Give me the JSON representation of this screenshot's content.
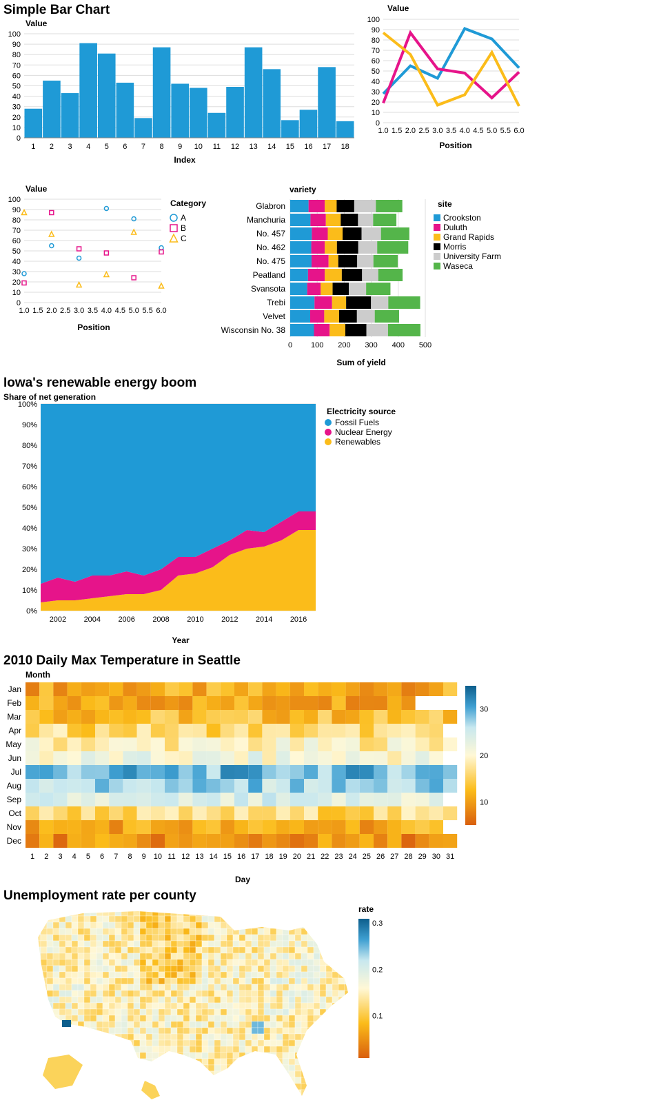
{
  "charts": [
    {
      "id": "bar",
      "title": "Simple Bar Chart",
      "ylabel": "Value",
      "xlabel": "Index",
      "type": "bar",
      "categories": [
        "1",
        "2",
        "3",
        "4",
        "5",
        "6",
        "7",
        "8",
        "9",
        "10",
        "11",
        "12",
        "13",
        "14",
        "15",
        "16",
        "17",
        "18"
      ],
      "values": [
        28,
        55,
        43,
        91,
        81,
        53,
        19,
        87,
        52,
        48,
        24,
        49,
        87,
        66,
        17,
        27,
        68,
        16
      ],
      "ylim": [
        0,
        100
      ],
      "yticks": [
        0,
        10,
        20,
        30,
        40,
        50,
        60,
        70,
        80,
        90,
        100
      ],
      "color": "#1f9ad6"
    },
    {
      "id": "lines",
      "type": "line",
      "ylabel": "Value",
      "xlabel": "Position",
      "x": [
        1,
        2,
        3,
        4,
        5,
        6
      ],
      "xticks": [
        "1.0",
        "1.5",
        "2.0",
        "2.5",
        "3.0",
        "3.5",
        "4.0",
        "4.5",
        "5.0",
        "5.5",
        "6.0"
      ],
      "yticks": [
        0,
        10,
        20,
        30,
        40,
        50,
        60,
        70,
        80,
        90,
        100
      ],
      "ylim": [
        0,
        100
      ],
      "series": [
        {
          "values": [
            28,
            55,
            43,
            91,
            81,
            53
          ],
          "color": "#1f9ad6"
        },
        {
          "values": [
            19,
            87,
            52,
            48,
            24,
            49
          ],
          "color": "#e6148a"
        },
        {
          "values": [
            87,
            66,
            17,
            27,
            68,
            16
          ],
          "color": "#fbbc1a"
        }
      ]
    },
    {
      "id": "scatter",
      "type": "scatter",
      "ylabel": "Value",
      "xlabel": "Position",
      "x": [
        1,
        2,
        3,
        4,
        5,
        6
      ],
      "xticks": [
        "1.0",
        "1.5",
        "2.0",
        "2.5",
        "3.0",
        "3.5",
        "4.0",
        "4.5",
        "5.0",
        "5.5",
        "6.0"
      ],
      "yticks": [
        0,
        10,
        20,
        30,
        40,
        50,
        60,
        70,
        80,
        90,
        100
      ],
      "ylim": [
        0,
        100
      ],
      "legend_title": "Category",
      "series": [
        {
          "name": "A",
          "values": [
            28,
            55,
            43,
            91,
            81,
            53
          ],
          "color": "#1f9ad6",
          "shape": "circle"
        },
        {
          "name": "B",
          "values": [
            19,
            87,
            52,
            48,
            24,
            49
          ],
          "color": "#e6148a",
          "shape": "square"
        },
        {
          "name": "C",
          "values": [
            87,
            66,
            17,
            27,
            68,
            16
          ],
          "color": "#fbbc1a",
          "shape": "triangle"
        }
      ]
    },
    {
      "id": "barley",
      "type": "bar",
      "orientation": "horizontal-stacked",
      "ylabel": "variety",
      "xlabel": "Sum of yield",
      "xticks": [
        0,
        100,
        200,
        300,
        400,
        500
      ],
      "xlim": [
        0,
        500
      ],
      "legend_title": "site",
      "categories": [
        "Glabron",
        "Manchuria",
        "No. 457",
        "No. 462",
        "No. 475",
        "Peatland",
        "Svansota",
        "Trebi",
        "Velvet",
        "Wisconsin No. 38"
      ],
      "series": [
        {
          "name": "Crookston",
          "color": "#1f9ad6",
          "values": [
            68,
            75,
            80,
            78,
            79,
            66,
            63,
            90,
            74,
            88
          ]
        },
        {
          "name": "Duluth",
          "color": "#e6148a",
          "values": [
            60,
            57,
            59,
            50,
            63,
            62,
            50,
            65,
            52,
            58
          ]
        },
        {
          "name": "Grand Rapids",
          "color": "#fbbc1a",
          "values": [
            44,
            55,
            55,
            45,
            36,
            63,
            44,
            52,
            55,
            58
          ]
        },
        {
          "name": "Morris",
          "color": "#000000",
          "values": [
            65,
            64,
            70,
            79,
            70,
            75,
            60,
            92,
            66,
            78
          ]
        },
        {
          "name": "University Farm",
          "color": "#cccccc",
          "values": [
            80,
            56,
            72,
            70,
            60,
            60,
            64,
            64,
            66,
            80
          ]
        },
        {
          "name": "Waseca",
          "color": "#54b54a",
          "values": [
            98,
            86,
            105,
            115,
            90,
            90,
            90,
            118,
            90,
            120
          ]
        }
      ]
    },
    {
      "id": "iowa",
      "type": "area",
      "title": "Iowa's renewable energy boom",
      "ylabel": "Share of net generation",
      "xlabel": "Year",
      "xticks": [
        "2002",
        "2004",
        "2006",
        "2008",
        "2010",
        "2012",
        "2014",
        "2016"
      ],
      "yticks": [
        "0%",
        "10%",
        "20%",
        "30%",
        "40%",
        "50%",
        "60%",
        "70%",
        "80%",
        "90%",
        "100%"
      ],
      "legend_title": "Electricity source",
      "x": [
        2001,
        2002,
        2003,
        2004,
        2005,
        2006,
        2007,
        2008,
        2009,
        2010,
        2011,
        2012,
        2013,
        2014,
        2015,
        2016,
        2017
      ],
      "series": [
        {
          "name": "Fossil Fuels",
          "color": "#1f9ad6",
          "values": [
            0.87,
            0.84,
            0.86,
            0.83,
            0.83,
            0.81,
            0.83,
            0.8,
            0.74,
            0.74,
            0.7,
            0.66,
            0.61,
            0.62,
            0.57,
            0.52,
            0.52
          ]
        },
        {
          "name": "Nuclear Energy",
          "color": "#e6148a",
          "values": [
            0.09,
            0.11,
            0.09,
            0.11,
            0.1,
            0.11,
            0.09,
            0.1,
            0.09,
            0.08,
            0.09,
            0.07,
            0.09,
            0.07,
            0.09,
            0.09,
            0.09
          ]
        },
        {
          "name": "Renewables",
          "color": "#fbbc1a",
          "values": [
            0.04,
            0.05,
            0.05,
            0.06,
            0.07,
            0.08,
            0.08,
            0.1,
            0.17,
            0.18,
            0.21,
            0.27,
            0.3,
            0.31,
            0.34,
            0.39,
            0.39
          ]
        }
      ]
    },
    {
      "id": "seattle",
      "type": "heatmap",
      "title": "2010 Daily Max Temperature in Seattle",
      "ylabel": "Month",
      "xlabel": "Day",
      "months": [
        "Jan",
        "Feb",
        "Mar",
        "Apr",
        "May",
        "Jun",
        "Jul",
        "Aug",
        "Sep",
        "Oct",
        "Nov",
        "Dec"
      ],
      "month_days": [
        31,
        28,
        31,
        30,
        31,
        30,
        31,
        31,
        30,
        31,
        30,
        31
      ],
      "monthly_max_temp": [
        11,
        11,
        13,
        16,
        19,
        21,
        29,
        27,
        23,
        16,
        11,
        9
      ],
      "legend_ticks": [
        10,
        20,
        30
      ],
      "legend_range": [
        5,
        35
      ]
    },
    {
      "id": "unemployment",
      "type": "map",
      "title": "Unemployment rate per county",
      "legend_title": "rate",
      "legend_ticks": [
        "0.1",
        "0.2",
        "0.3"
      ]
    }
  ]
}
